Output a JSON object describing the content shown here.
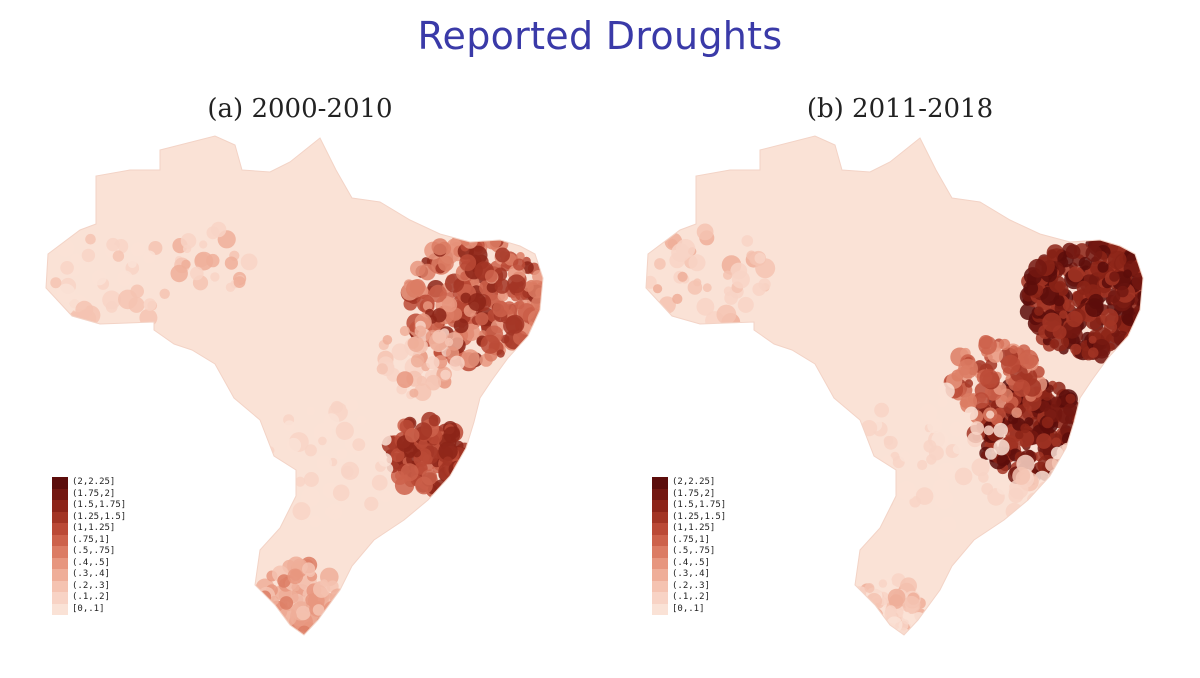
{
  "title": "Reported Droughts",
  "panels": [
    {
      "title": "(a) 2000-2010",
      "scenario": "a"
    },
    {
      "title": "(b) 2011-2018",
      "scenario": "b"
    }
  ],
  "legend": {
    "bins": [
      {
        "label": "(2,2.25]",
        "color": "#5c0d0b"
      },
      {
        "label": "(1.75,2]",
        "color": "#731711"
      },
      {
        "label": "(1.5,1.75]",
        "color": "#8c2418"
      },
      {
        "label": "(1.25,1.5]",
        "color": "#a33524"
      },
      {
        "label": "(1,1.25]",
        "color": "#bb4a36"
      },
      {
        "label": "(.75,1]",
        "color": "#cd624b"
      },
      {
        "label": "(.5,.75]",
        "color": "#dc7c64"
      },
      {
        "label": "(.4,.5]",
        "color": "#e7967f"
      },
      {
        "label": "(.3,.4]",
        "color": "#efae99"
      },
      {
        "label": "(.2,.3]",
        "color": "#f5c3b1"
      },
      {
        "label": "(.1,.2]",
        "color": "#f8d3c5"
      },
      {
        "label": "[0,.1]",
        "color": "#fae2d6"
      }
    ]
  }
}
